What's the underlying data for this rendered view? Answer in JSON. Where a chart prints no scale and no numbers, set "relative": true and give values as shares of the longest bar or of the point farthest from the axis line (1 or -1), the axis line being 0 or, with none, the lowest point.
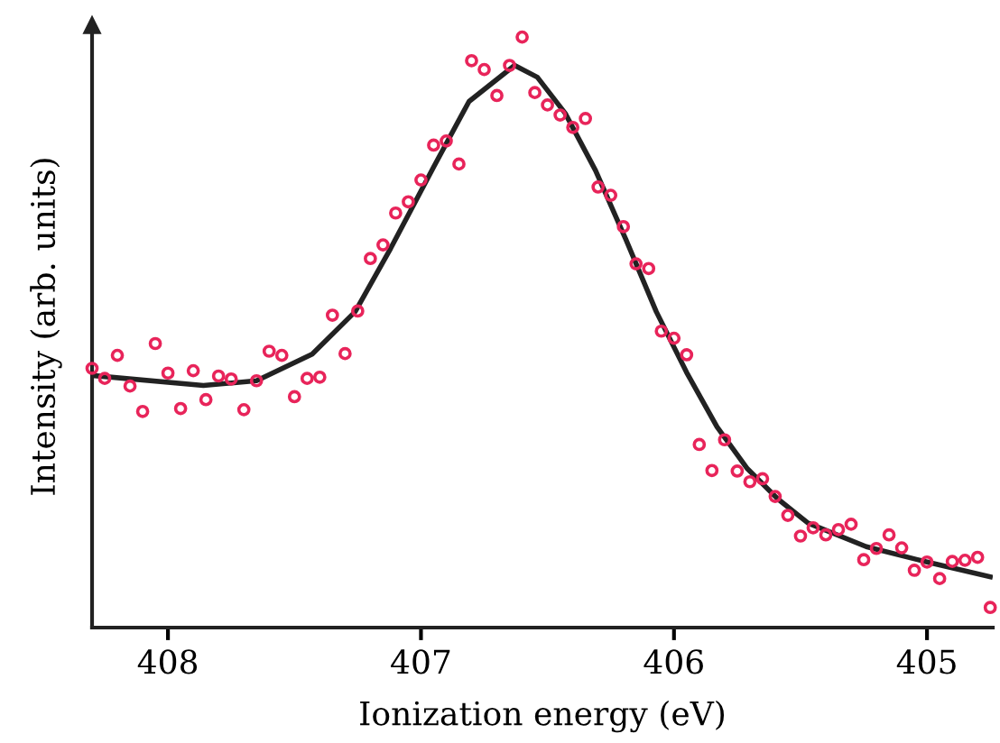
{
  "chart_data": {
    "type": "scatter",
    "relative": true,
    "xlabel": "Ionization energy (eV)",
    "ylabel": "Intensity (arb. units)",
    "xlim": [
      408.3,
      404.74
    ],
    "xticks": [
      408,
      407,
      406,
      405
    ],
    "tick_labels": "x",
    "grid": false,
    "legend": false,
    "series": [
      {
        "marker": "circle",
        "color": "#e8245a",
        "x": [
          408.3,
          408.25,
          408.2,
          408.15,
          408.1,
          408.05,
          408.0,
          407.95,
          407.9,
          407.85,
          407.8,
          407.75,
          407.7,
          407.65,
          407.6,
          407.55,
          407.5,
          407.45,
          407.4,
          407.35,
          407.3,
          407.25,
          407.2,
          407.15,
          407.1,
          407.05,
          407.0,
          406.95,
          406.9,
          406.85,
          406.8,
          406.75,
          406.7,
          406.65,
          406.6,
          406.55,
          406.5,
          406.45,
          406.4,
          406.35,
          406.3,
          406.25,
          406.2,
          406.15,
          406.1,
          406.05,
          406.0,
          405.95,
          405.9,
          405.85,
          405.8,
          405.75,
          405.7,
          405.65,
          405.6,
          405.55,
          405.5,
          405.45,
          405.4,
          405.35,
          405.3,
          405.25,
          405.2,
          405.15,
          405.1,
          405.05,
          405.0,
          404.95,
          404.9,
          404.85,
          404.8,
          404.75
        ],
        "values": [
          0.439,
          0.422,
          0.461,
          0.409,
          0.366,
          0.481,
          0.431,
          0.371,
          0.435,
          0.386,
          0.426,
          0.421,
          0.369,
          0.418,
          0.468,
          0.461,
          0.391,
          0.422,
          0.424,
          0.529,
          0.464,
          0.536,
          0.625,
          0.648,
          0.702,
          0.721,
          0.758,
          0.817,
          0.824,
          0.785,
          0.96,
          0.945,
          0.901,
          0.952,
          1.0,
          0.906,
          0.885,
          0.868,
          0.847,
          0.862,
          0.746,
          0.732,
          0.679,
          0.616,
          0.608,
          0.502,
          0.49,
          0.462,
          0.31,
          0.266,
          0.318,
          0.265,
          0.247,
          0.252,
          0.222,
          0.19,
          0.155,
          0.169,
          0.157,
          0.166,
          0.175,
          0.115,
          0.134,
          0.157,
          0.135,
          0.097,
          0.111,
          0.083,
          0.112,
          0.114,
          0.119,
          0.034
        ]
      },
      {
        "type": "line",
        "marker": "none",
        "line_style": "solid",
        "color": "#222222",
        "x": [
          408.3,
          407.86,
          407.65,
          407.43,
          407.26,
          407.12,
          406.95,
          406.81,
          406.63,
          406.54,
          406.43,
          406.31,
          406.19,
          406.07,
          405.95,
          405.83,
          405.71,
          405.59,
          405.47,
          405.24,
          405.0,
          404.75
        ],
        "values": [
          0.427,
          0.41,
          0.418,
          0.463,
          0.535,
          0.642,
          0.78,
          0.891,
          0.952,
          0.932,
          0.871,
          0.774,
          0.657,
          0.535,
          0.432,
          0.34,
          0.269,
          0.218,
          0.177,
          0.137,
          0.111,
          0.086
        ]
      }
    ]
  }
}
